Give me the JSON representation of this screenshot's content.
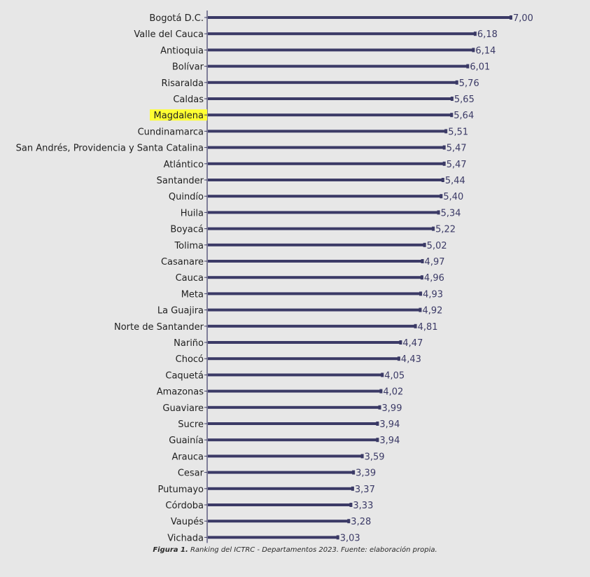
{
  "chart_data": {
    "type": "bar",
    "orientation": "horizontal",
    "categories": [
      "Bogotá D.C.",
      "Valle del Cauca",
      "Antioquia",
      "Bolívar",
      "Risaralda",
      "Caldas",
      "Magdalena",
      "Cundinamarca",
      "San Andrés, Providencia y Santa Catalina",
      "Atlántico",
      "Santander",
      "Quindío",
      "Huila",
      "Boyacá",
      "Tolima",
      "Casanare",
      "Cauca",
      "Meta",
      "La Guajira",
      "Norte de Santander",
      "Nariño",
      "Chocó",
      "Caquetá",
      "Amazonas",
      "Guaviare",
      "Sucre",
      "Guainía",
      "Arauca",
      "Cesar",
      "Putumayo",
      "Córdoba",
      "Vaupés",
      "Vichada"
    ],
    "values": [
      7.0,
      6.18,
      6.14,
      6.01,
      5.76,
      5.65,
      5.64,
      5.51,
      5.47,
      5.47,
      5.44,
      5.4,
      5.34,
      5.22,
      5.02,
      4.97,
      4.96,
      4.93,
      4.92,
      4.81,
      4.47,
      4.43,
      4.05,
      4.02,
      3.99,
      3.94,
      3.94,
      3.59,
      3.39,
      3.37,
      3.33,
      3.28,
      3.03
    ],
    "value_labels": [
      "7,00",
      "6,18",
      "6,14",
      "6,01",
      "5,76",
      "5,65",
      "5,64",
      "5,51",
      "5,47",
      "5,47",
      "5,44",
      "5,40",
      "5,34",
      "5,22",
      "5,02",
      "4,97",
      "4,96",
      "4,93",
      "4,92",
      "4,81",
      "4,47",
      "4,43",
      "4,05",
      "4,02",
      "3,99",
      "3,94",
      "3,94",
      "3,59",
      "3,39",
      "3,37",
      "3,33",
      "3,28",
      "3,03"
    ],
    "highlighted_category": "Magdalena",
    "xlim": [
      0,
      7
    ],
    "grid": false,
    "bar_color": "#3b3a66",
    "highlight_color": "#ffff33"
  },
  "caption": {
    "prefix": "Figura 1.",
    "text": " Ranking del ICTRC - Departamentos 2023. Fuente: elaboración propia."
  }
}
